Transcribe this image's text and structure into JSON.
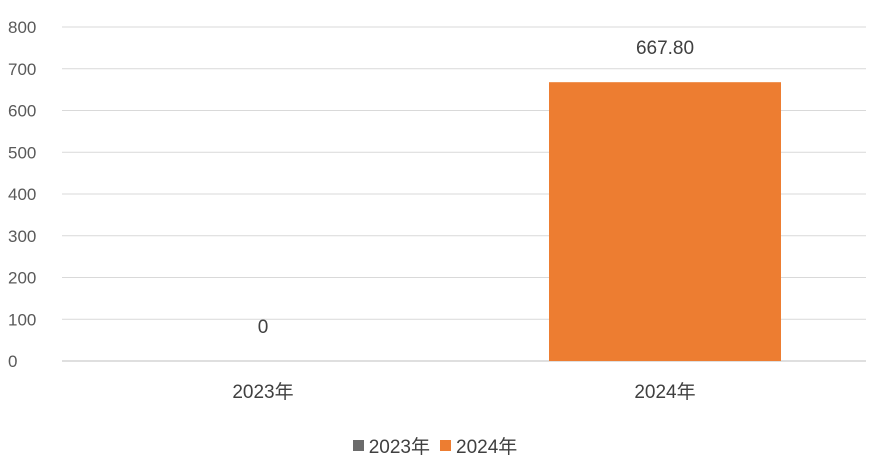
{
  "chart_data": {
    "type": "bar",
    "categories": [
      "2023年",
      "2024年"
    ],
    "series": [
      {
        "name": "2023年",
        "values": [
          0,
          null
        ],
        "color": "#6b6b6b"
      },
      {
        "name": "2024年",
        "values": [
          null,
          667.8
        ],
        "color": "#ed7d31"
      }
    ],
    "data_labels": [
      "0",
      "667.80"
    ],
    "ylim": [
      0,
      800
    ],
    "yticks": [
      0,
      100,
      200,
      300,
      400,
      500,
      600,
      700,
      800
    ],
    "grid": true,
    "legend_position": "bottom"
  }
}
